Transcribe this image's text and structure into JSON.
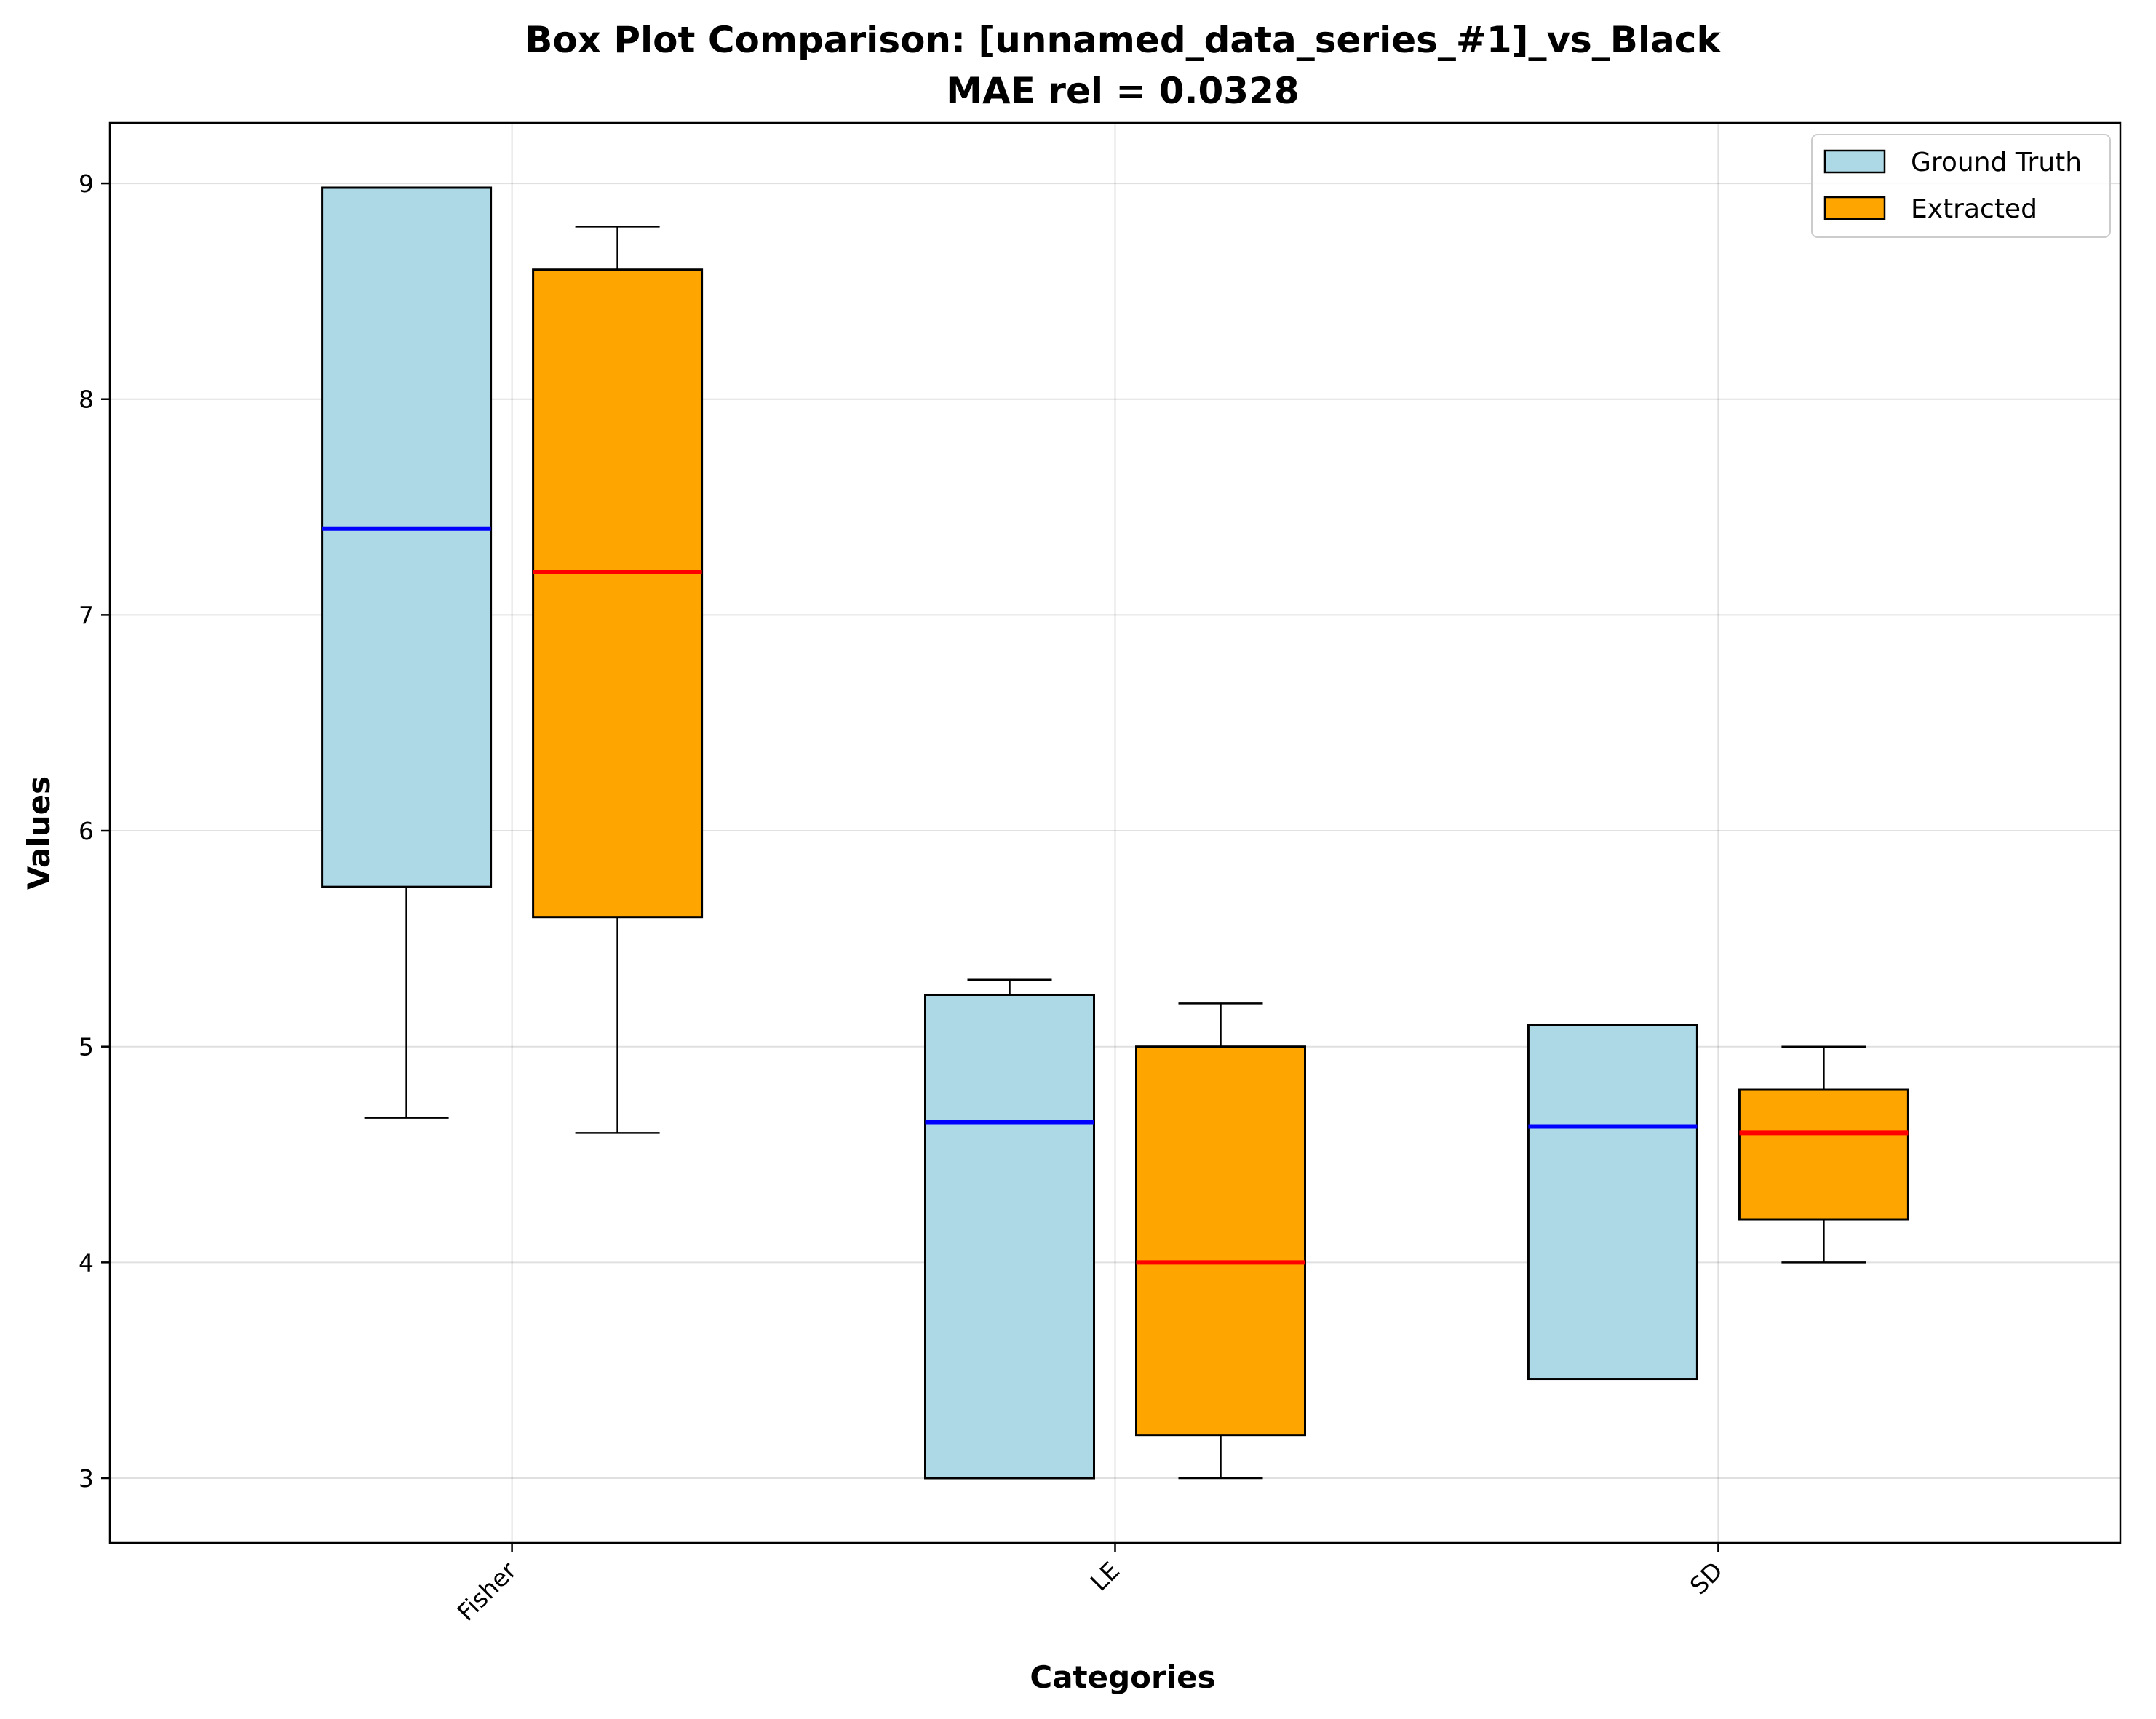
{
  "title_line1": "Box Plot Comparison: [unnamed_data_series_#1]_vs_Black",
  "title_line2": "MAE rel = 0.0328",
  "chart_data": {
    "type": "box",
    "title": "Box Plot Comparison: [unnamed_data_series_#1]_vs_Black\nMAE rel = 0.0328",
    "xlabel": "Categories",
    "ylabel": "Values",
    "categories": [
      "Fisher",
      "LE",
      "SD"
    ],
    "ylim": [
      2.7,
      9.28
    ],
    "yticks": [
      3,
      4,
      5,
      6,
      7,
      8,
      9
    ],
    "grid": true,
    "legend_position": "top-right",
    "series": [
      {
        "name": "Ground Truth",
        "fill": "#add8e6",
        "median_color": "#0000ff",
        "boxes": [
          {
            "whisker_low": 4.67,
            "q1": 5.74,
            "median": 7.4,
            "q3": 8.98,
            "whisker_high": 8.98
          },
          {
            "whisker_low": 3.0,
            "q1": 3.0,
            "median": 4.65,
            "q3": 5.24,
            "whisker_high": 5.31
          },
          {
            "whisker_low": 3.46,
            "q1": 3.46,
            "median": 4.63,
            "q3": 5.1,
            "whisker_high": 5.1
          }
        ]
      },
      {
        "name": "Extracted",
        "fill": "#ffa500",
        "median_color": "#ff0000",
        "boxes": [
          {
            "whisker_low": 4.6,
            "q1": 5.6,
            "median": 7.2,
            "q3": 8.6,
            "whisker_high": 8.8
          },
          {
            "whisker_low": 3.0,
            "q1": 3.2,
            "median": 4.0,
            "q3": 5.0,
            "whisker_high": 5.2
          },
          {
            "whisker_low": 4.0,
            "q1": 4.2,
            "median": 4.6,
            "q3": 4.8,
            "whisker_high": 5.0
          }
        ]
      }
    ]
  }
}
